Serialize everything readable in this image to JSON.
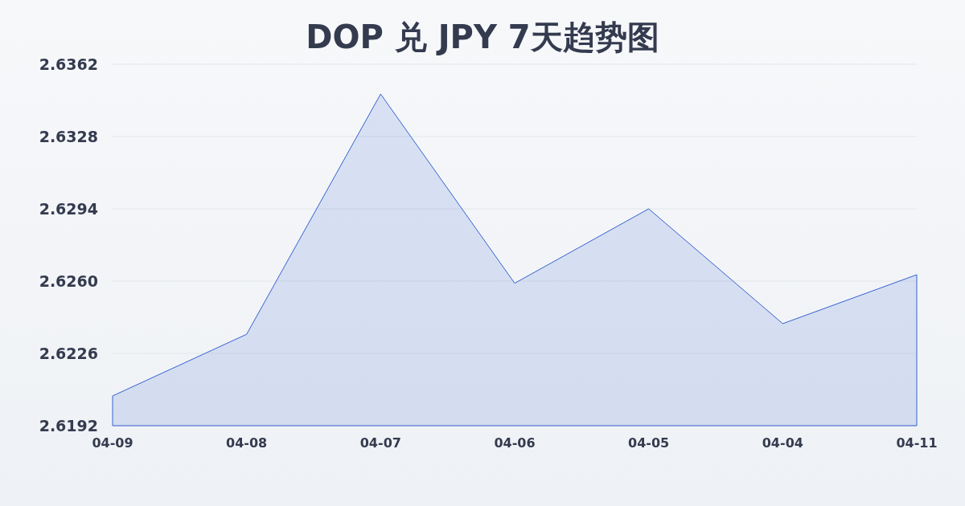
{
  "chart_data": {
    "type": "area",
    "title": "DOP 兑 JPY 7天趋势图",
    "categories": [
      "04-09",
      "04-08",
      "04-07",
      "04-06",
      "04-05",
      "04-04",
      "04-11"
    ],
    "series": [
      {
        "color": "#3562d0",
        "values": [
          2.6206,
          2.6235,
          2.6348,
          2.6259,
          2.6294,
          2.624,
          2.6263
        ]
      }
    ],
    "ylim": [
      2.6192,
      2.6362
    ],
    "yticks": [
      2.6192,
      2.6226,
      {
        "value": 2.626,
        "label": "2.6260"
      },
      2.6294,
      2.6328,
      2.6362
    ],
    "grid": "y"
  }
}
